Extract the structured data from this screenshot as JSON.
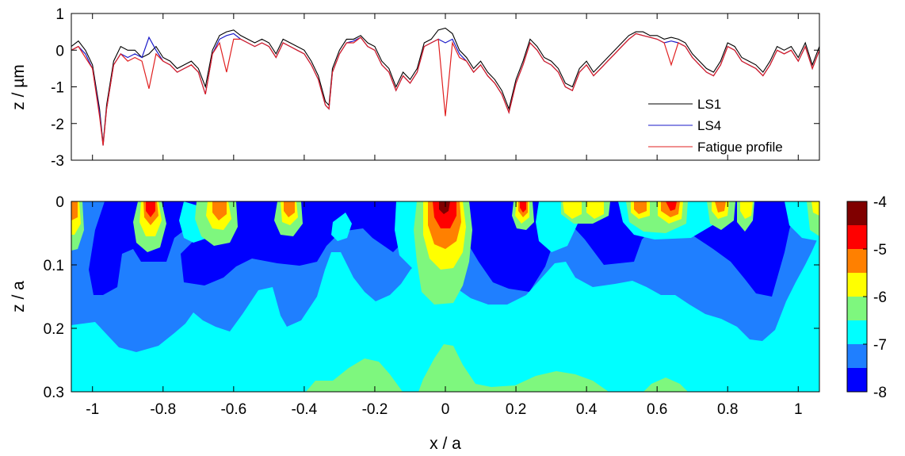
{
  "chart_data": [
    {
      "type": "line",
      "xlim": [
        -1.06,
        1.06
      ],
      "ylim": [
        -3,
        1
      ],
      "xticks": [
        -1,
        -0.8,
        -0.6,
        -0.4,
        -0.2,
        0,
        0.2,
        0.4,
        0.6,
        0.8,
        1
      ],
      "yticks": [
        1,
        0,
        -1,
        -2,
        -3
      ],
      "ytick_labels": [
        "1",
        "0",
        "-1",
        "-2",
        "-3"
      ],
      "ylabel": "z / µm",
      "legend_position": "bottom-right",
      "series": [
        {
          "name": "LS1",
          "color": "#000000",
          "x": [
            -1.06,
            -1.04,
            -1.02,
            -1.0,
            -0.98,
            -0.97,
            -0.96,
            -0.94,
            -0.92,
            -0.9,
            -0.88,
            -0.86,
            -0.84,
            -0.82,
            -0.8,
            -0.78,
            -0.76,
            -0.74,
            -0.72,
            -0.7,
            -0.68,
            -0.66,
            -0.64,
            -0.62,
            -0.6,
            -0.58,
            -0.56,
            -0.54,
            -0.52,
            -0.5,
            -0.48,
            -0.46,
            -0.44,
            -0.42,
            -0.4,
            -0.38,
            -0.36,
            -0.34,
            -0.33,
            -0.32,
            -0.3,
            -0.28,
            -0.26,
            -0.24,
            -0.22,
            -0.2,
            -0.18,
            -0.16,
            -0.14,
            -0.12,
            -0.1,
            -0.08,
            -0.06,
            -0.04,
            -0.02,
            0.0,
            0.02,
            0.04,
            0.06,
            0.08,
            0.1,
            0.12,
            0.14,
            0.16,
            0.18,
            0.2,
            0.22,
            0.24,
            0.26,
            0.28,
            0.3,
            0.32,
            0.34,
            0.36,
            0.38,
            0.4,
            0.42,
            0.44,
            0.46,
            0.48,
            0.5,
            0.52,
            0.54,
            0.56,
            0.58,
            0.6,
            0.62,
            0.64,
            0.66,
            0.68,
            0.7,
            0.72,
            0.74,
            0.76,
            0.78,
            0.8,
            0.82,
            0.84,
            0.86,
            0.88,
            0.9,
            0.92,
            0.94,
            0.96,
            0.98,
            1.0,
            1.02,
            1.04,
            1.06
          ],
          "y": [
            0.1,
            0.25,
            0.0,
            -0.4,
            -1.6,
            -2.55,
            -1.5,
            -0.3,
            0.1,
            0.0,
            0.0,
            -0.2,
            -0.1,
            0.1,
            -0.2,
            -0.3,
            -0.5,
            -0.4,
            -0.3,
            -0.5,
            -1.0,
            0.0,
            0.4,
            0.5,
            0.55,
            0.4,
            0.3,
            0.2,
            0.3,
            0.2,
            -0.1,
            0.3,
            0.2,
            0.1,
            0.0,
            -0.3,
            -0.7,
            -1.4,
            -1.5,
            -0.5,
            0.0,
            0.3,
            0.3,
            0.4,
            0.2,
            0.1,
            -0.3,
            -0.5,
            -1.0,
            -0.6,
            -0.8,
            -0.5,
            0.2,
            0.3,
            0.55,
            0.6,
            0.45,
            0.0,
            -0.2,
            -0.5,
            -0.3,
            -0.6,
            -0.8,
            -1.1,
            -1.6,
            -0.8,
            -0.3,
            0.3,
            0.1,
            -0.2,
            -0.3,
            -0.5,
            -0.9,
            -1.0,
            -0.5,
            -0.3,
            -0.6,
            -0.4,
            -0.2,
            0.0,
            0.2,
            0.4,
            0.5,
            0.5,
            0.4,
            0.4,
            0.3,
            0.35,
            0.3,
            0.2,
            -0.1,
            -0.3,
            -0.5,
            -0.6,
            -0.3,
            0.2,
            0.1,
            -0.2,
            -0.3,
            -0.4,
            -0.6,
            -0.3,
            0.1,
            0.0,
            0.1,
            -0.2,
            0.2,
            -0.4,
            0.1
          ]
        },
        {
          "name": "LS4",
          "color": "#1a1ac8",
          "x": [
            -1.06,
            -1.04,
            -1.02,
            -1.0,
            -0.98,
            -0.97,
            -0.96,
            -0.94,
            -0.92,
            -0.9,
            -0.88,
            -0.86,
            -0.84,
            -0.82,
            -0.8,
            -0.78,
            -0.76,
            -0.74,
            -0.72,
            -0.7,
            -0.68,
            -0.66,
            -0.64,
            -0.62,
            -0.6,
            -0.58,
            -0.56,
            -0.54,
            -0.52,
            -0.5,
            -0.48,
            -0.46,
            -0.44,
            -0.42,
            -0.4,
            -0.38,
            -0.36,
            -0.34,
            -0.33,
            -0.32,
            -0.3,
            -0.28,
            -0.26,
            -0.24,
            -0.22,
            -0.2,
            -0.18,
            -0.16,
            -0.14,
            -0.12,
            -0.1,
            -0.08,
            -0.06,
            -0.04,
            -0.02,
            0.0,
            0.02,
            0.04,
            0.06,
            0.08,
            0.1,
            0.12,
            0.14,
            0.16,
            0.18,
            0.2,
            0.22,
            0.24,
            0.26,
            0.28,
            0.3,
            0.32,
            0.34,
            0.36,
            0.38,
            0.4,
            0.42,
            0.44,
            0.46,
            0.48,
            0.5,
            0.52,
            0.54,
            0.56,
            0.58,
            0.6,
            0.62,
            0.64,
            0.66,
            0.68,
            0.7,
            0.72,
            0.74,
            0.76,
            0.78,
            0.8,
            0.82,
            0.84,
            0.86,
            0.88,
            0.9,
            0.92,
            0.94,
            0.96,
            0.98,
            1.0,
            1.02,
            1.04,
            1.06
          ],
          "y": [
            0.0,
            0.1,
            -0.1,
            -0.5,
            -1.7,
            -2.6,
            -1.6,
            -0.4,
            -0.1,
            -0.2,
            -0.1,
            -0.2,
            0.35,
            0.0,
            -0.3,
            -0.4,
            -0.6,
            -0.5,
            -0.4,
            -0.6,
            -1.2,
            -0.1,
            0.3,
            0.4,
            0.45,
            0.3,
            0.2,
            0.1,
            0.2,
            0.1,
            -0.2,
            0.2,
            0.1,
            0.0,
            -0.1,
            -0.4,
            -0.8,
            -1.5,
            -1.6,
            -0.6,
            -0.1,
            0.2,
            0.25,
            0.35,
            0.1,
            0.0,
            -0.4,
            -0.6,
            -1.1,
            -0.7,
            -0.9,
            -0.6,
            0.1,
            0.2,
            0.3,
            0.2,
            0.3,
            -0.1,
            -0.3,
            -0.6,
            -0.4,
            -0.7,
            -0.9,
            -1.2,
            -1.7,
            -0.9,
            -0.4,
            0.2,
            0.0,
            -0.3,
            -0.4,
            -0.6,
            -1.0,
            -1.1,
            -0.6,
            -0.4,
            -0.7,
            -0.5,
            -0.3,
            -0.1,
            0.1,
            0.3,
            0.45,
            0.4,
            0.35,
            0.3,
            0.2,
            0.25,
            0.2,
            0.1,
            -0.2,
            -0.4,
            -0.6,
            -0.7,
            -0.4,
            0.1,
            0.0,
            -0.3,
            -0.4,
            -0.5,
            -0.7,
            -0.4,
            0.0,
            -0.1,
            0.0,
            -0.3,
            0.1,
            -0.5,
            0.0
          ]
        },
        {
          "name": "Fatigue profile",
          "color": "#e02020",
          "x": [
            -1.06,
            -1.04,
            -1.02,
            -1.0,
            -0.98,
            -0.97,
            -0.96,
            -0.94,
            -0.92,
            -0.9,
            -0.88,
            -0.86,
            -0.84,
            -0.82,
            -0.8,
            -0.78,
            -0.76,
            -0.74,
            -0.72,
            -0.7,
            -0.68,
            -0.66,
            -0.64,
            -0.62,
            -0.6,
            -0.58,
            -0.56,
            -0.54,
            -0.52,
            -0.5,
            -0.48,
            -0.46,
            -0.44,
            -0.42,
            -0.4,
            -0.38,
            -0.36,
            -0.34,
            -0.33,
            -0.32,
            -0.3,
            -0.28,
            -0.26,
            -0.24,
            -0.22,
            -0.2,
            -0.18,
            -0.16,
            -0.14,
            -0.12,
            -0.1,
            -0.08,
            -0.06,
            -0.04,
            -0.02,
            0.0,
            0.02,
            0.04,
            0.06,
            0.08,
            0.1,
            0.12,
            0.14,
            0.16,
            0.18,
            0.2,
            0.22,
            0.24,
            0.26,
            0.28,
            0.3,
            0.32,
            0.34,
            0.36,
            0.38,
            0.4,
            0.42,
            0.44,
            0.46,
            0.48,
            0.5,
            0.52,
            0.54,
            0.56,
            0.58,
            0.6,
            0.62,
            0.64,
            0.66,
            0.68,
            0.7,
            0.72,
            0.74,
            0.76,
            0.78,
            0.8,
            0.82,
            0.84,
            0.86,
            0.88,
            0.9,
            0.92,
            0.94,
            0.96,
            0.98,
            1.0,
            1.02,
            1.04,
            1.06
          ],
          "y": [
            0.0,
            0.1,
            -0.2,
            -0.5,
            -1.8,
            -2.6,
            -1.6,
            -0.4,
            -0.1,
            -0.3,
            -0.2,
            -0.3,
            -1.05,
            -0.1,
            -0.3,
            -0.4,
            -0.6,
            -0.5,
            -0.4,
            -0.6,
            -1.2,
            -0.1,
            0.2,
            -0.6,
            0.3,
            0.3,
            0.2,
            0.1,
            0.2,
            0.1,
            -0.2,
            0.2,
            0.1,
            0.0,
            -0.1,
            -0.4,
            -0.8,
            -1.5,
            -1.6,
            -0.6,
            -0.1,
            0.2,
            0.2,
            0.35,
            0.1,
            0.0,
            -0.4,
            -0.6,
            -1.1,
            -0.7,
            -0.9,
            -0.6,
            0.1,
            0.2,
            0.3,
            -1.8,
            0.2,
            -0.2,
            -0.3,
            -0.6,
            -0.4,
            -0.7,
            -0.9,
            -1.2,
            -1.7,
            -0.9,
            -0.4,
            0.2,
            0.0,
            -0.3,
            -0.4,
            -0.6,
            -1.0,
            -1.1,
            -0.6,
            -0.4,
            -0.7,
            -0.5,
            -0.3,
            -0.1,
            0.1,
            0.3,
            0.45,
            0.4,
            0.35,
            0.3,
            0.2,
            -0.4,
            0.2,
            0.1,
            -0.2,
            -0.4,
            -0.6,
            -0.7,
            -0.4,
            0.1,
            0.0,
            -0.3,
            -0.4,
            -0.5,
            -0.7,
            -0.4,
            0.0,
            -0.1,
            0.0,
            -0.3,
            0.1,
            -0.5,
            0.0
          ]
        }
      ]
    },
    {
      "type": "heatmap",
      "xlabel": "x / a",
      "ylabel": "z / a",
      "xlim": [
        -1.06,
        1.06
      ],
      "ylim": [
        0,
        0.3
      ],
      "y_reversed": true,
      "xticks": [
        -1,
        -0.8,
        -0.6,
        -0.4,
        -0.2,
        0,
        0.2,
        0.4,
        0.6,
        0.8,
        1
      ],
      "xtick_labels": [
        "-1",
        "-0.8",
        "-0.6",
        "-0.4",
        "-0.2",
        "0",
        "0.2",
        "0.4",
        "0.6",
        "0.8",
        "1"
      ],
      "yticks": [
        0,
        0.1,
        0.2,
        0.3
      ],
      "ytick_labels": [
        "0",
        "0.1",
        "0.2",
        "0.3"
      ],
      "colorbar": {
        "ticks": [
          -4,
          -5,
          -6,
          -7,
          -8
        ],
        "tick_labels": [
          "-4",
          "-5",
          "-6",
          "-7",
          "-8"
        ],
        "range": [
          -8,
          -4
        ],
        "levels": [
          {
            "from": -8.0,
            "to": -7.5,
            "color": "#0000ff"
          },
          {
            "from": -7.5,
            "to": -7.0,
            "color": "#1f7fff"
          },
          {
            "from": -7.0,
            "to": -6.5,
            "color": "#00ffff"
          },
          {
            "from": -6.5,
            "to": -6.0,
            "color": "#7ef77e"
          },
          {
            "from": -6.0,
            "to": -5.5,
            "color": "#ffff00"
          },
          {
            "from": -5.5,
            "to": -5.0,
            "color": "#ff8000"
          },
          {
            "from": -5.0,
            "to": -4.5,
            "color": "#ff0000"
          },
          {
            "from": -4.5,
            "to": -4.0,
            "color": "#800000"
          }
        ]
      },
      "hotspots": [
        {
          "x": -1.05,
          "z_depth": 0.08,
          "peak": -5.0
        },
        {
          "x": -0.84,
          "z_depth": 0.09,
          "peak": -4.8
        },
        {
          "x": -0.62,
          "z_depth": 0.11,
          "peak": -5.2
        },
        {
          "x": -0.44,
          "z_depth": 0.06,
          "peak": -5.1
        },
        {
          "x": -0.23,
          "z_depth": 0.03,
          "peak": -6.0
        },
        {
          "x": -0.01,
          "z_depth": 0.12,
          "peak": -4.2
        },
        {
          "x": 0.23,
          "z_depth": 0.05,
          "peak": -5.0
        },
        {
          "x": 0.39,
          "z_depth": 0.05,
          "peak": -5.3
        },
        {
          "x": 0.55,
          "z_depth": 0.05,
          "peak": -5.1
        },
        {
          "x": 0.64,
          "z_depth": 0.05,
          "peak": -4.9
        },
        {
          "x": 0.79,
          "z_depth": 0.04,
          "peak": -5.2
        },
        {
          "x": 0.87,
          "z_depth": 0.04,
          "peak": -5.3
        },
        {
          "x": 1.03,
          "z_depth": 0.03,
          "peak": -5.6
        }
      ]
    }
  ]
}
